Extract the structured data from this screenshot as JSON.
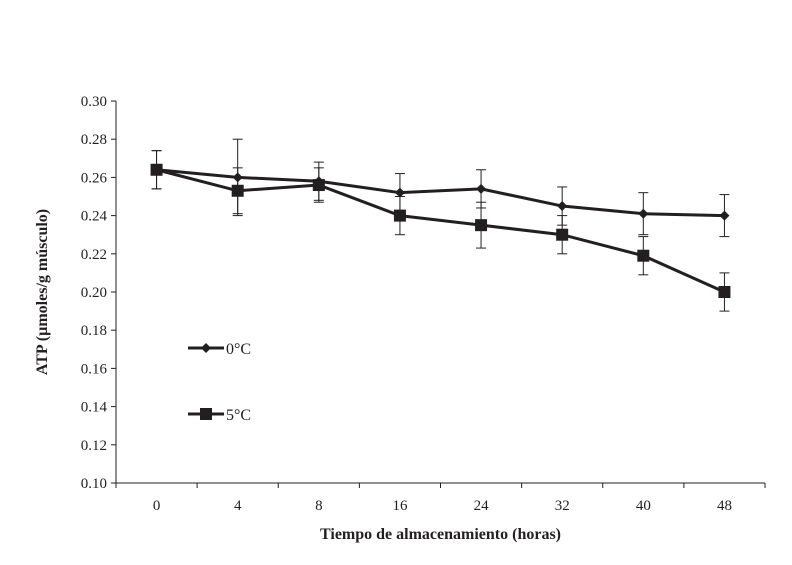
{
  "chart_data": {
    "type": "line",
    "title": "",
    "xlabel": "Tiempo de almacenamiento (horas)",
    "ylabel": "ATP (µmoles/g músculo)",
    "categories": [
      "0",
      "4",
      "8",
      "16",
      "24",
      "32",
      "40",
      "48"
    ],
    "ylim": [
      0.1,
      0.3
    ],
    "yticks": [
      "0.10",
      "0.12",
      "0.14",
      "0.16",
      "0.18",
      "0.20",
      "0.22",
      "0.24",
      "0.26",
      "0.28",
      "0.30"
    ],
    "grid": false,
    "legend_placement": "left-middle",
    "series": [
      {
        "name": "0°C",
        "marker": "diamond",
        "values": [
          0.264,
          0.26,
          0.258,
          0.252,
          0.254,
          0.245,
          0.241,
          0.24
        ],
        "errors": [
          0.01,
          0.02,
          0.01,
          0.01,
          0.01,
          0.01,
          0.011,
          0.011
        ]
      },
      {
        "name": "5°C",
        "marker": "square",
        "values": [
          0.264,
          0.253,
          0.256,
          0.24,
          0.235,
          0.23,
          0.219,
          0.2
        ],
        "errors": [
          0.01,
          0.012,
          0.009,
          0.01,
          0.012,
          0.01,
          0.01,
          0.01
        ]
      }
    ],
    "color": "#231f20"
  }
}
